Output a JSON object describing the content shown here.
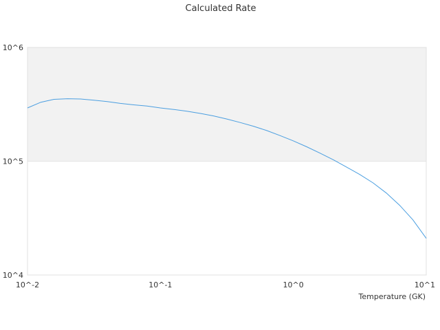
{
  "chart_data": {
    "type": "line",
    "title": "Calculated Rate",
    "xlabel": "Temperature (GK)",
    "ylabel": "",
    "x_scale": "log",
    "y_scale": "log",
    "xlim": [
      0.01,
      10
    ],
    "ylim": [
      10000,
      1000000
    ],
    "x_tick_values": [
      0.01,
      0.1,
      1,
      10
    ],
    "x_tick_labels": [
      "10^-2",
      "10^-1",
      "10^0",
      "10^1"
    ],
    "y_tick_values": [
      10000,
      100000,
      1000000
    ],
    "y_tick_labels": [
      "10^4",
      "10^5",
      "10^6"
    ],
    "shaded_band": {
      "from": 100000,
      "to": 1000000,
      "color": "#f2f2f2"
    },
    "line_color": "#4a9ee0",
    "series": [
      {
        "x": [
          0.01,
          0.0126,
          0.0158,
          0.02,
          0.0251,
          0.0316,
          0.0398,
          0.05,
          0.063,
          0.0794,
          0.1,
          0.126,
          0.158,
          0.2,
          0.251,
          0.316,
          0.398,
          0.501,
          0.631,
          0.794,
          1.0,
          1.26,
          1.58,
          2.0,
          2.51,
          3.16,
          3.98,
          5.01,
          6.31,
          7.94,
          10.0
        ],
        "y": [
          294000,
          330000,
          350000,
          354000,
          352000,
          344000,
          334000,
          322000,
          313000,
          305000,
          294000,
          285000,
          275000,
          263000,
          250000,
          235000,
          219000,
          203000,
          186000,
          168000,
          151000,
          134000,
          118000,
          103000,
          89000,
          76500,
          64500,
          52500,
          41000,
          30500,
          21000
        ]
      }
    ]
  }
}
